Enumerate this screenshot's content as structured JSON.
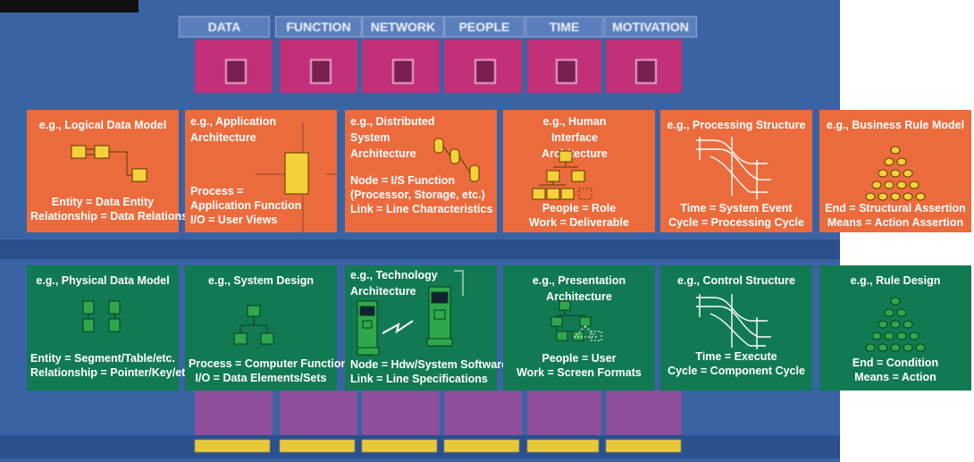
{
  "columns": [
    {
      "label": "DATA"
    },
    {
      "label": "FUNCTION"
    },
    {
      "label": "NETWORK"
    },
    {
      "label": "PEOPLE"
    },
    {
      "label": "TIME"
    },
    {
      "label": "MOTIVATION"
    }
  ],
  "rows": {
    "logical": [
      {
        "title": "e.g., Logical Data Model",
        "lines": [
          "Entity = Data Entity",
          "Relationship = Data Relationship"
        ],
        "icon": "logical-data-model-icon"
      },
      {
        "title": "e.g., Application Architecture",
        "lines": [
          "Process =",
          "Application Function",
          "I/O = User Views"
        ],
        "icon": "application-architecture-icon"
      },
      {
        "title": "e.g., Distributed System Architecture",
        "lines": [
          "Node = I/S Function",
          "(Processor, Storage, etc.)",
          "Link = Line Characteristics"
        ],
        "icon": "distributed-system-icon"
      },
      {
        "title": "e.g., Human Interface Architecture",
        "lines": [
          "People = Role",
          "Work = Deliverable"
        ],
        "icon": "human-interface-hierarchy-icon"
      },
      {
        "title": "e.g., Processing Structure",
        "lines": [
          "Time = System Event",
          "Cycle = Processing Cycle"
        ],
        "icon": "processing-structure-icon"
      },
      {
        "title": "e.g., Business Rule Model",
        "lines": [
          "End = Structural Assertion",
          "Means = Action Assertion"
        ],
        "icon": "business-rule-pyramid-icon"
      }
    ],
    "physical": [
      {
        "title": "e.g., Physical Data Model",
        "lines": [
          "Entity = Segment/Table/etc.",
          "Relationship = Pointer/Key/etc."
        ],
        "icon": "physical-data-model-icon"
      },
      {
        "title": "e.g., System Design",
        "lines": [
          "Process = Computer Function",
          "I/O = Data Elements/Sets"
        ],
        "icon": "system-design-tree-icon"
      },
      {
        "title": "e.g., Technology Architecture",
        "lines": [
          "Node = Hdw/System Software",
          "Link = Line Specifications"
        ],
        "icon": "technology-architecture-icon"
      },
      {
        "title": "e.g., Presentation Architecture",
        "lines": [
          "People = User",
          "Work = Screen Formats"
        ],
        "icon": "presentation-hierarchy-icon"
      },
      {
        "title": "e.g., Control Structure",
        "lines": [
          "Time = Execute",
          "Cycle = Component Cycle"
        ],
        "icon": "control-structure-icon"
      },
      {
        "title": "e.g., Rule Design",
        "lines": [
          "End = Condition",
          "Means = Action"
        ],
        "icon": "rule-design-pyramid-icon"
      }
    ]
  },
  "colors": {
    "background": "#3a63a3",
    "logical_row": "#ec6b3d",
    "physical_row": "#127a52",
    "scope_row": "#c2307a",
    "box_yellow": "#f4d03a",
    "box_green": "#2fa84c"
  }
}
